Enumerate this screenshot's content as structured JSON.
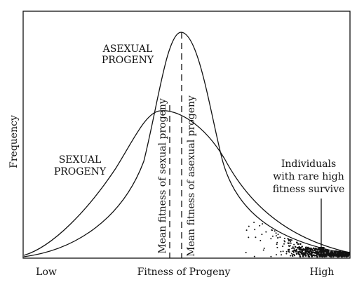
{
  "labels": {
    "y_axis": "Frequency",
    "x_axis": "Fitness of Progeny",
    "x_low": "Low",
    "x_high": "High",
    "asexual_line1": "ASEXUAL",
    "asexual_line2": "PROGENY",
    "sexual_line1": "SEXUAL",
    "sexual_line2": "PROGENY",
    "mean_sexual": "Mean fitness of sexual progeny",
    "mean_asexual": "Mean fitness of asexual progeny",
    "note_line1": "Individuals",
    "note_line2": "with rare high",
    "note_line3": "fitness survive"
  },
  "colors": {
    "ink": "#111111",
    "background": "#ffffff"
  }
}
